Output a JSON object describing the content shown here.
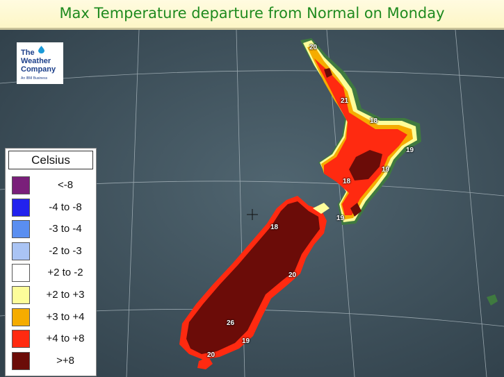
{
  "title": "Max Temperature departure from Normal on Monday",
  "logo": {
    "line1": "The",
    "line2": "Weather",
    "line3": "Company",
    "subtitle": "An IBM Business"
  },
  "legend": {
    "title": "Celsius",
    "items": [
      {
        "label": "<-8",
        "color": "#7a1f7a"
      },
      {
        "label": "-4 to -8",
        "color": "#2222ee"
      },
      {
        "label": "-3 to -4",
        "color": "#5a8ef0"
      },
      {
        "label": "-2 to -3",
        "color": "#aac4f4"
      },
      {
        "label": "+2 to -2",
        "color": "#ffffff"
      },
      {
        "label": "+2 to +3",
        "color": "#fdfd9a"
      },
      {
        "label": "+3 to +4",
        "color": "#f5ac00"
      },
      {
        "label": "+4 to +8",
        "color": "#ff2a10"
      },
      {
        "label": ">+8",
        "color": "#6b0c08"
      }
    ]
  },
  "temperatures": [
    {
      "value": "20",
      "place": "far-north"
    },
    {
      "value": "21",
      "place": "coromandel"
    },
    {
      "value": "18",
      "place": "bay-of-plenty"
    },
    {
      "value": "19",
      "place": "east-cape"
    },
    {
      "value": "19",
      "place": "hawkes-bay"
    },
    {
      "value": "18",
      "place": "taranaki"
    },
    {
      "value": "19",
      "place": "wellington"
    },
    {
      "value": "18",
      "place": "nelson"
    },
    {
      "value": "20",
      "place": "christchurch"
    },
    {
      "value": "26",
      "place": "central-otago"
    },
    {
      "value": "19",
      "place": "dunedin"
    },
    {
      "value": "20",
      "place": "southland"
    }
  ],
  "colors": {
    "sea": "#3d4e59",
    "graticule": "#aab7be",
    "land_neutral": "#3f7a3f",
    "title_text": "#1e8a1e"
  }
}
